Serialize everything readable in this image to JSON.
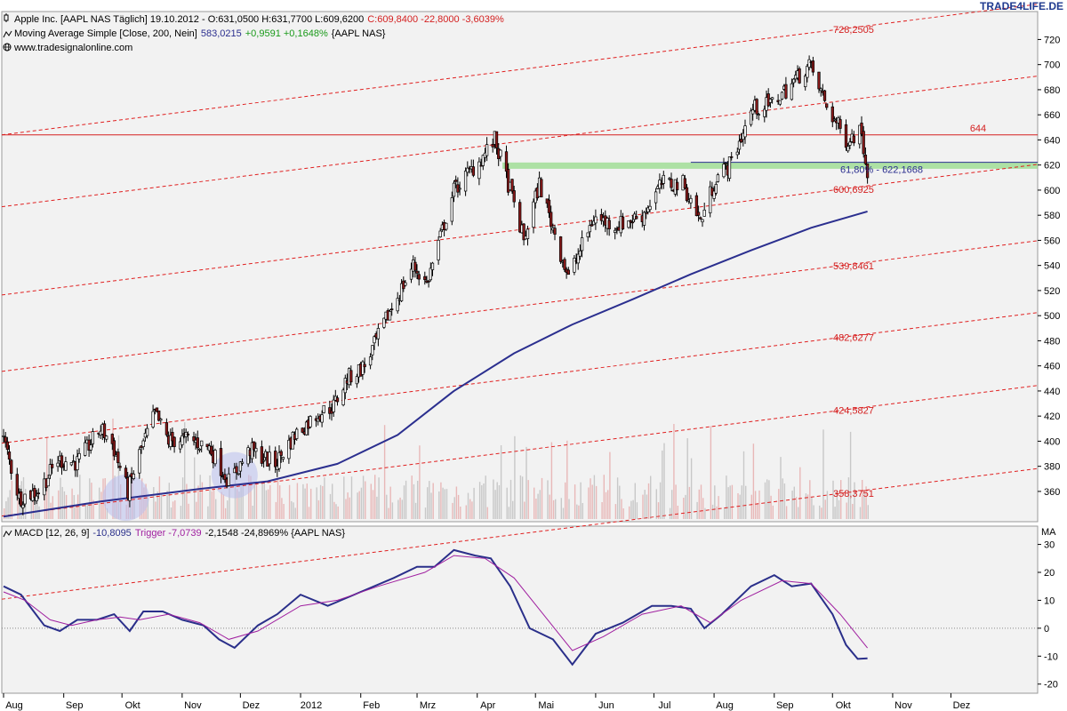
{
  "watermark": "TRADE4LIFE.DE",
  "header": {
    "price_line_prefix": "Apple Inc. [AAPL NAS  Täglich] 19.10.2012 - ",
    "price_ohl": "O:631,0500 H:631,7700 L:609,6200",
    "price_change": "C:609,8400 -22,8000 -3,6039%",
    "ma_prefix": "Moving Average Simple [Close, 200, Nein]",
    "ma_value": "583,0215",
    "ma_change": "+0,9591 +0,1648%",
    "ma_suffix": "{AAPL NAS}",
    "source": "www.tradesignalonline.com",
    "icons": [
      "candlestick-icon",
      "line-icon",
      "globe-icon"
    ]
  },
  "macd_header": {
    "label": "MACD [12, 26, 9]",
    "value": "-10,8095",
    "trigger": "Trigger -7,0739",
    "rest": "-2,1548 -24,8969% {AAPL NAS}",
    "axis_label": "MA"
  },
  "colors": {
    "background": "#f2f2f2",
    "candle_up": "#ffffff",
    "candle_down": "#8b1a1a",
    "moving_average": "#2b2f8f",
    "trend_channel": "#e02020",
    "resistance": "#d42020",
    "support_zone": "#9bdc90",
    "volume": "#c8c8c8",
    "macd_line": "#2a2f8a",
    "trigger_line": "#a020a0"
  },
  "chart_data": [
    {
      "type": "candlestick",
      "title": "Apple Inc. [AAPL NAS Täglich]",
      "x_ticks": [
        "Aug",
        "Sep",
        "Okt",
        "Nov",
        "Dez",
        "2012",
        "Feb",
        "Mrz",
        "Apr",
        "Mai",
        "Jun",
        "Jul",
        "Aug",
        "Sep",
        "Okt",
        "Nov",
        "Dez"
      ],
      "y_ticks": [
        360,
        380,
        400,
        420,
        440,
        460,
        480,
        500,
        520,
        540,
        560,
        580,
        600,
        620,
        640,
        660,
        680,
        700,
        720
      ],
      "ylim": [
        338,
        738
      ],
      "grid": false,
      "price_path": [
        [
          "2011-08-01",
          402
        ],
        [
          "2011-08-09",
          355
        ],
        [
          "2011-08-19",
          360
        ],
        [
          "2011-08-29",
          385
        ],
        [
          "2011-09-08",
          383
        ],
        [
          "2011-09-20",
          410
        ],
        [
          "2011-09-26",
          398
        ],
        [
          "2011-10-04",
          360
        ],
        [
          "2011-10-10",
          390
        ],
        [
          "2011-10-18",
          422
        ],
        [
          "2011-10-25",
          400
        ],
        [
          "2011-11-04",
          402
        ],
        [
          "2011-11-15",
          395
        ],
        [
          "2011-11-25",
          368
        ],
        [
          "2011-12-06",
          393
        ],
        [
          "2011-12-19",
          382
        ],
        [
          "2011-12-29",
          405
        ],
        [
          "2012-01-10",
          422
        ],
        [
          "2012-01-18",
          428
        ],
        [
          "2012-01-25",
          450
        ],
        [
          "2012-02-03",
          460
        ],
        [
          "2012-02-15",
          500
        ],
        [
          "2012-02-28",
          540
        ],
        [
          "2012-03-06",
          525
        ],
        [
          "2012-03-20",
          600
        ],
        [
          "2012-04-03",
          625
        ],
        [
          "2012-04-10",
          640
        ],
        [
          "2012-04-18",
          600
        ],
        [
          "2012-04-25",
          560
        ],
        [
          "2012-05-03",
          605
        ],
        [
          "2012-05-18",
          530
        ],
        [
          "2012-05-31",
          578
        ],
        [
          "2012-06-12",
          572
        ],
        [
          "2012-06-25",
          580
        ],
        [
          "2012-07-05",
          605
        ],
        [
          "2012-07-16",
          605
        ],
        [
          "2012-07-25",
          575
        ],
        [
          "2012-08-02",
          610
        ],
        [
          "2012-08-09",
          620
        ],
        [
          "2012-08-21",
          665
        ],
        [
          "2012-08-30",
          668
        ],
        [
          "2012-09-07",
          680
        ],
        [
          "2012-09-19",
          700
        ],
        [
          "2012-09-28",
          667
        ],
        [
          "2012-10-08",
          640
        ],
        [
          "2012-10-16",
          648
        ],
        [
          "2012-10-19",
          609.84
        ]
      ],
      "moving_average_200": [
        [
          "2011-08-01",
          340
        ],
        [
          "2011-09-20",
          352
        ],
        [
          "2011-11-10",
          362
        ],
        [
          "2011-12-15",
          368
        ],
        [
          "2012-01-20",
          382
        ],
        [
          "2012-02-20",
          405
        ],
        [
          "2012-03-20",
          440
        ],
        [
          "2012-04-20",
          470
        ],
        [
          "2012-05-20",
          493
        ],
        [
          "2012-06-20",
          513
        ],
        [
          "2012-07-20",
          533
        ],
        [
          "2012-08-20",
          552
        ],
        [
          "2012-09-20",
          570
        ],
        [
          "2012-10-19",
          583.0215
        ]
      ],
      "horizontal_lines": [
        {
          "value": 644,
          "label": "644",
          "label_date": "2012-12-15"
        }
      ],
      "support_zone": {
        "from": 617,
        "to": 622,
        "start": "2012-04-14",
        "end": "2012-12-31"
      },
      "fib_line": {
        "value": 622.1668,
        "start": "2012-07-20",
        "end": "2012-12-31",
        "label": "61,80% - 622,1668",
        "label_date": "2012-10-05"
      },
      "trend_channel": {
        "line_values_at_2012-10-05": [
          728.2505,
          671,
          600.6925,
          539.8461,
          482.6277,
          424.5827,
          358.3751
        ],
        "label_values": [
          728.2505,
          600.6925,
          539.8461,
          482.6277,
          424.5827,
          358.3751
        ],
        "labels": [
          "728,2505",
          "600,6925",
          "539,8461",
          "482,6277",
          "424,5827",
          "358,3751"
        ],
        "slope_per_day": 0.195
      },
      "highlight_circles": [
        {
          "date": "2011-10-03",
          "value": 355
        },
        {
          "date": "2011-11-28",
          "value": 373
        }
      ],
      "volume_heights": [
        0.1,
        0.95,
        0.3,
        0.55,
        0.45
      ]
    },
    {
      "type": "line",
      "title": "MACD [12, 26, 9]",
      "y_ticks": [
        -20,
        -10,
        0,
        10,
        20,
        30
      ],
      "ylim": [
        -22,
        34
      ],
      "zero_line": true,
      "series": [
        {
          "name": "MACD",
          "color": "#2a2f8a",
          "points": [
            [
              "2011-08-01",
              15
            ],
            [
              "2011-08-10",
              12
            ],
            [
              "2011-08-22",
              1
            ],
            [
              "2011-08-30",
              -1
            ],
            [
              "2011-09-08",
              3
            ],
            [
              "2011-09-18",
              3
            ],
            [
              "2011-09-27",
              5
            ],
            [
              "2011-10-05",
              -1
            ],
            [
              "2011-10-12",
              6
            ],
            [
              "2011-10-22",
              6
            ],
            [
              "2011-11-01",
              3
            ],
            [
              "2011-11-12",
              1
            ],
            [
              "2011-11-20",
              -4
            ],
            [
              "2011-11-28",
              -7
            ],
            [
              "2011-12-10",
              1
            ],
            [
              "2011-12-20",
              5
            ],
            [
              "2012-01-01",
              12
            ],
            [
              "2012-01-15",
              8
            ],
            [
              "2012-02-01",
              13
            ],
            [
              "2012-02-18",
              18
            ],
            [
              "2012-03-01",
              22
            ],
            [
              "2012-03-10",
              22
            ],
            [
              "2012-03-20",
              28
            ],
            [
              "2012-03-31",
              26
            ],
            [
              "2012-04-08",
              25
            ],
            [
              "2012-04-18",
              15
            ],
            [
              "2012-04-28",
              0
            ],
            [
              "2012-05-10",
              -4
            ],
            [
              "2012-05-20",
              -13
            ],
            [
              "2012-06-01",
              -2
            ],
            [
              "2012-06-15",
              2
            ],
            [
              "2012-06-30",
              8
            ],
            [
              "2012-07-10",
              8
            ],
            [
              "2012-07-20",
              7
            ],
            [
              "2012-07-27",
              0
            ],
            [
              "2012-08-05",
              5
            ],
            [
              "2012-08-20",
              15
            ],
            [
              "2012-09-01",
              19
            ],
            [
              "2012-09-10",
              15
            ],
            [
              "2012-09-20",
              16
            ],
            [
              "2012-10-01",
              5
            ],
            [
              "2012-10-08",
              -6
            ],
            [
              "2012-10-14",
              -11
            ],
            [
              "2012-10-19",
              -10.8095
            ]
          ]
        },
        {
          "name": "Trigger",
          "color": "#a020a0",
          "points": [
            [
              "2011-08-01",
              13
            ],
            [
              "2011-08-12",
              10
            ],
            [
              "2011-08-25",
              3
            ],
            [
              "2011-09-05",
              1
            ],
            [
              "2011-09-18",
              3
            ],
            [
              "2011-09-30",
              4
            ],
            [
              "2011-10-10",
              3
            ],
            [
              "2011-10-25",
              5
            ],
            [
              "2011-11-10",
              2
            ],
            [
              "2011-11-25",
              -4
            ],
            [
              "2011-12-10",
              -1
            ],
            [
              "2012-01-01",
              8
            ],
            [
              "2012-01-20",
              10
            ],
            [
              "2012-02-10",
              15
            ],
            [
              "2012-03-05",
              20
            ],
            [
              "2012-03-20",
              26
            ],
            [
              "2012-04-05",
              25
            ],
            [
              "2012-04-20",
              18
            ],
            [
              "2012-05-05",
              5
            ],
            [
              "2012-05-20",
              -8
            ],
            [
              "2012-06-05",
              -3
            ],
            [
              "2012-06-25",
              5
            ],
            [
              "2012-07-15",
              8
            ],
            [
              "2012-07-30",
              2
            ],
            [
              "2012-08-15",
              10
            ],
            [
              "2012-09-05",
              17
            ],
            [
              "2012-09-20",
              16
            ],
            [
              "2012-10-05",
              5
            ],
            [
              "2012-10-19",
              -7.0739
            ]
          ]
        }
      ]
    }
  ]
}
